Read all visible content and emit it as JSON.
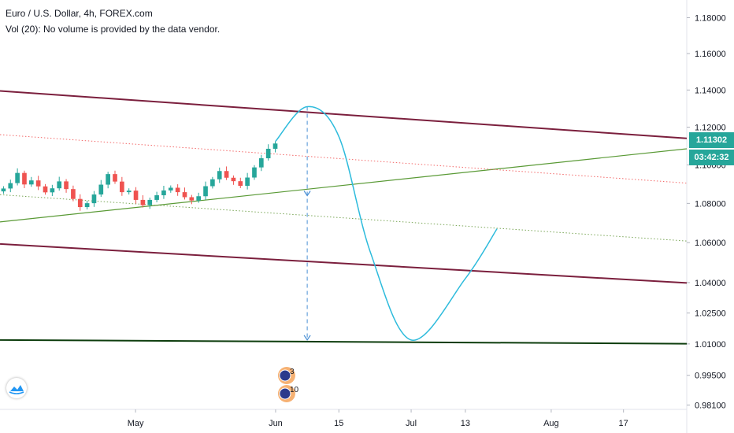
{
  "header": {
    "title": "Euro / U.S. Dollar, 4h, FOREX.com",
    "volume_note": "Vol (20): No volume is provided by the data vendor."
  },
  "price_tags": {
    "last_price": "1.11302",
    "countdown": "03:42:32",
    "last_price_color": "#26a69a",
    "countdown_color": "#26a69a"
  },
  "events": {
    "upper_badge": "3",
    "lower_badge": "10"
  },
  "colors": {
    "channel_line": "#7b1f3d",
    "support_line": "#0d3d0d",
    "trend_line": "#5a9a36",
    "projection_curve": "#2dbbdc",
    "measure_arrow": "#4a8fd4",
    "dotted_red": "#f36a6a",
    "dotted_green": "#7aa657",
    "candle_up": "#26a69a",
    "candle_down": "#ef5350"
  },
  "chart_data": {
    "type": "candlestick",
    "instrument": "Euro / U.S. Dollar",
    "timeframe": "4h",
    "source": "FOREX.com",
    "yscale": "log",
    "ylim": [
      0.968,
      1.19
    ],
    "y_ticks": [
      "1.18000",
      "1.16000",
      "1.14000",
      "1.12000",
      "1.10000",
      "1.08000",
      "1.06000",
      "1.04000",
      "1.02500",
      "1.01000",
      "0.99500",
      "0.98100"
    ],
    "x_ticks": [
      "May",
      "Jun",
      "15",
      "Jul",
      "13",
      "Aug",
      "17"
    ],
    "last_price": 1.11302,
    "price_history": [
      1.0877,
      1.0905,
      1.0958,
      1.0898,
      1.0919,
      1.0888,
      1.0857,
      1.0878,
      1.0914,
      1.0874,
      1.0823,
      1.0781,
      1.0801,
      1.0846,
      1.0897,
      1.0952,
      1.0913,
      1.0858,
      1.0866,
      1.0818,
      1.0791,
      1.0818,
      1.0842,
      1.0867,
      1.0881,
      1.0858,
      1.0832,
      1.0815,
      1.0837,
      1.0889,
      1.0925,
      1.0968,
      1.0933,
      1.0915,
      1.0891,
      1.0934,
      1.0987,
      1.1035,
      1.1085,
      1.1113
    ],
    "drawings": [
      {
        "name": "upper channel",
        "type": "line",
        "color": "#7b1f3d",
        "points": [
          [
            "Apr 1",
            1.1395
          ],
          [
            "Aug 31",
            1.114
          ]
        ]
      },
      {
        "name": "lower channel",
        "type": "line",
        "color": "#7b1f3d",
        "points": [
          [
            "Apr 1",
            1.0593
          ],
          [
            "Aug 31",
            1.0398
          ]
        ]
      },
      {
        "name": "support",
        "type": "line",
        "color": "#0d3d0d",
        "points": [
          [
            "Apr 1",
            1.0119
          ],
          [
            "Aug 31",
            1.0101
          ]
        ]
      },
      {
        "name": "rising trendline",
        "type": "line",
        "color": "#5a9a36",
        "points": [
          [
            "Apr 1",
            1.0705
          ],
          [
            "Aug 31",
            1.1085
          ]
        ]
      },
      {
        "name": "dotted resistance",
        "type": "dotted",
        "color": "#f36a6a",
        "points": [
          [
            "Apr 1",
            1.116
          ],
          [
            "Aug 31",
            1.0905
          ]
        ]
      },
      {
        "name": "dotted midline",
        "type": "dotted",
        "color": "#7aa657",
        "points": [
          [
            "Apr 1",
            1.0845
          ],
          [
            "Aug 31",
            1.0608
          ]
        ]
      },
      {
        "name": "measured move",
        "type": "arrow",
        "color": "#4a8fd4",
        "points": [
          [
            "Jun 8",
            1.131
          ],
          [
            "Jun 8",
            1.084
          ],
          [
            "Jun 8",
            1.0119
          ]
        ]
      },
      {
        "name": "projected path",
        "type": "curve",
        "color": "#2dbbdc",
        "points": [
          [
            "Jun 1",
            1.1125
          ],
          [
            "Jun 8",
            1.131
          ],
          [
            "Jun 15",
            1.115
          ],
          [
            "Jun 22",
            1.055
          ],
          [
            "Jul 1",
            1.0119
          ],
          [
            "Jul 13",
            1.042
          ],
          [
            "Jul 20",
            1.067
          ]
        ]
      }
    ]
  }
}
